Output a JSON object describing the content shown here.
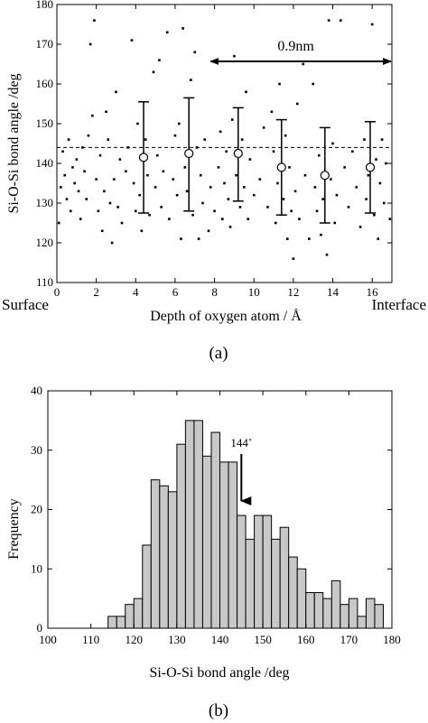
{
  "chart_data": [
    {
      "id": "a",
      "type": "scatter",
      "caption": "(a)",
      "xlabel": "Depth of oxygen atom / Å",
      "ylabel": "Si-O-Si bond angle  /deg",
      "xlim": [
        0,
        17
      ],
      "ylim": [
        110,
        180
      ],
      "xticks": [
        0,
        2,
        4,
        6,
        8,
        10,
        12,
        14,
        16
      ],
      "yticks": [
        110,
        120,
        130,
        140,
        150,
        160,
        170,
        180
      ],
      "left_end_label": "Surface",
      "right_end_label": "Interface",
      "reference_line": 144,
      "span_annotation": {
        "label": "0.9nm",
        "x_from": 7.8,
        "x_to": 17
      },
      "error_bars": [
        {
          "x": 4.4,
          "mean": 141.5,
          "low": 127.5,
          "high": 155.5
        },
        {
          "x": 6.7,
          "mean": 142.5,
          "low": 128.0,
          "high": 156.5
        },
        {
          "x": 9.2,
          "mean": 142.5,
          "low": 130.5,
          "high": 154.0
        },
        {
          "x": 11.4,
          "mean": 139.0,
          "low": 127.0,
          "high": 151.0
        },
        {
          "x": 13.6,
          "mean": 137.0,
          "low": 125.0,
          "high": 149.0
        },
        {
          "x": 15.9,
          "mean": 139.0,
          "low": 127.5,
          "high": 150.5
        }
      ],
      "points": [
        [
          0.1,
          125
        ],
        [
          0.2,
          134
        ],
        [
          0.3,
          143
        ],
        [
          0.4,
          137
        ],
        [
          0.5,
          131
        ],
        [
          0.6,
          146
        ],
        [
          0.7,
          128
        ],
        [
          0.8,
          139
        ],
        [
          0.9,
          135
        ],
        [
          1.0,
          141
        ],
        [
          1.1,
          133
        ],
        [
          1.2,
          126
        ],
        [
          1.3,
          144
        ],
        [
          1.4,
          138
        ],
        [
          1.5,
          131
        ],
        [
          1.6,
          147
        ],
        [
          1.7,
          170
        ],
        [
          1.8,
          152
        ],
        [
          1.9,
          176
        ],
        [
          2.0,
          136
        ],
        [
          2.1,
          128
        ],
        [
          2.2,
          142
        ],
        [
          2.3,
          123
        ],
        [
          2.4,
          133
        ],
        [
          2.5,
          153
        ],
        [
          2.6,
          146
        ],
        [
          2.7,
          130
        ],
        [
          2.8,
          120
        ],
        [
          2.9,
          136
        ],
        [
          3.0,
          158
        ],
        [
          3.1,
          129
        ],
        [
          3.2,
          141
        ],
        [
          3.3,
          125
        ],
        [
          3.5,
          138
        ],
        [
          3.6,
          144
        ],
        [
          3.8,
          171
        ],
        [
          3.9,
          135
        ],
        [
          4.0,
          128
        ],
        [
          4.1,
          150
        ],
        [
          4.2,
          132
        ],
        [
          4.3,
          123
        ],
        [
          4.5,
          146
        ],
        [
          4.6,
          137
        ],
        [
          4.7,
          127
        ],
        [
          4.9,
          163
        ],
        [
          5.0,
          134
        ],
        [
          5.1,
          142
        ],
        [
          5.2,
          166
        ],
        [
          5.3,
          129
        ],
        [
          5.4,
          138
        ],
        [
          5.6,
          173
        ],
        [
          5.7,
          126
        ],
        [
          5.9,
          136
        ],
        [
          6.0,
          147
        ],
        [
          6.1,
          132
        ],
        [
          6.2,
          150
        ],
        [
          6.3,
          121
        ],
        [
          6.4,
          174
        ],
        [
          6.5,
          139
        ],
        [
          6.6,
          133
        ],
        [
          6.8,
          161
        ],
        [
          6.9,
          127
        ],
        [
          7.0,
          168
        ],
        [
          7.1,
          144
        ],
        [
          7.2,
          121
        ],
        [
          7.3,
          137
        ],
        [
          7.4,
          130
        ],
        [
          7.5,
          146
        ],
        [
          7.7,
          123
        ],
        [
          7.8,
          134
        ],
        [
          8.0,
          128
        ],
        [
          8.2,
          139
        ],
        [
          8.3,
          148
        ],
        [
          8.4,
          126
        ],
        [
          8.5,
          135
        ],
        [
          8.6,
          143
        ],
        [
          8.7,
          131
        ],
        [
          8.8,
          124
        ],
        [
          8.9,
          151
        ],
        [
          9.0,
          167
        ],
        [
          9.1,
          137
        ],
        [
          9.3,
          129
        ],
        [
          9.4,
          146
        ],
        [
          9.5,
          134
        ],
        [
          9.6,
          158
        ],
        [
          9.7,
          126
        ],
        [
          9.8,
          141
        ],
        [
          10.0,
          132
        ],
        [
          10.3,
          136
        ],
        [
          10.5,
          149
        ],
        [
          10.7,
          129
        ],
        [
          10.9,
          153
        ],
        [
          11.0,
          143
        ],
        [
          11.1,
          125
        ],
        [
          11.2,
          135
        ],
        [
          11.3,
          160
        ],
        [
          11.5,
          131
        ],
        [
          11.6,
          147
        ],
        [
          11.7,
          121
        ],
        [
          11.8,
          139
        ],
        [
          11.9,
          128
        ],
        [
          12.0,
          116
        ],
        [
          12.1,
          133
        ],
        [
          12.2,
          155
        ],
        [
          12.3,
          126
        ],
        [
          12.5,
          165
        ],
        [
          12.6,
          137
        ],
        [
          12.8,
          121
        ],
        [
          13.0,
          160
        ],
        [
          13.1,
          134
        ],
        [
          13.2,
          128
        ],
        [
          13.3,
          142
        ],
        [
          13.4,
          122
        ],
        [
          13.5,
          131
        ],
        [
          13.7,
          117
        ],
        [
          13.8,
          176
        ],
        [
          13.9,
          136
        ],
        [
          14.0,
          145
        ],
        [
          14.1,
          125
        ],
        [
          14.2,
          132
        ],
        [
          14.4,
          176
        ],
        [
          14.6,
          139
        ],
        [
          14.8,
          129
        ],
        [
          15.0,
          143
        ],
        [
          15.2,
          134
        ],
        [
          15.4,
          124
        ],
        [
          15.6,
          146
        ],
        [
          15.7,
          131
        ],
        [
          15.8,
          137
        ],
        [
          16.0,
          175
        ],
        [
          16.1,
          127
        ],
        [
          16.2,
          141
        ],
        [
          16.3,
          121
        ],
        [
          16.4,
          135
        ],
        [
          16.5,
          146
        ],
        [
          16.6,
          130
        ],
        [
          16.7,
          140
        ],
        [
          16.9,
          126
        ]
      ]
    },
    {
      "id": "b",
      "type": "bar",
      "caption": "(b)",
      "xlabel": "Si-O-Si bond angle  /deg",
      "ylabel": "Frequency",
      "xlim": [
        100,
        180
      ],
      "ylim": [
        0,
        40
      ],
      "xticks": [
        100,
        110,
        120,
        130,
        140,
        150,
        160,
        170,
        180
      ],
      "yticks": [
        0,
        10,
        20,
        30,
        40
      ],
      "bin_width": 2,
      "bin_starts": [
        114,
        116,
        118,
        120,
        122,
        124,
        126,
        128,
        130,
        132,
        134,
        136,
        138,
        140,
        142,
        144,
        146,
        148,
        150,
        152,
        154,
        156,
        158,
        160,
        162,
        164,
        166,
        168,
        170,
        172,
        174,
        176
      ],
      "values": [
        2,
        2,
        4,
        5,
        14,
        25,
        24,
        23,
        31,
        35,
        35,
        29,
        33,
        28,
        28,
        19,
        15,
        19,
        19,
        15,
        17,
        12,
        10,
        6,
        6,
        5,
        8,
        4,
        5,
        2,
        5,
        4
      ],
      "annotation": {
        "label": "144˚",
        "x": 145
      }
    }
  ]
}
